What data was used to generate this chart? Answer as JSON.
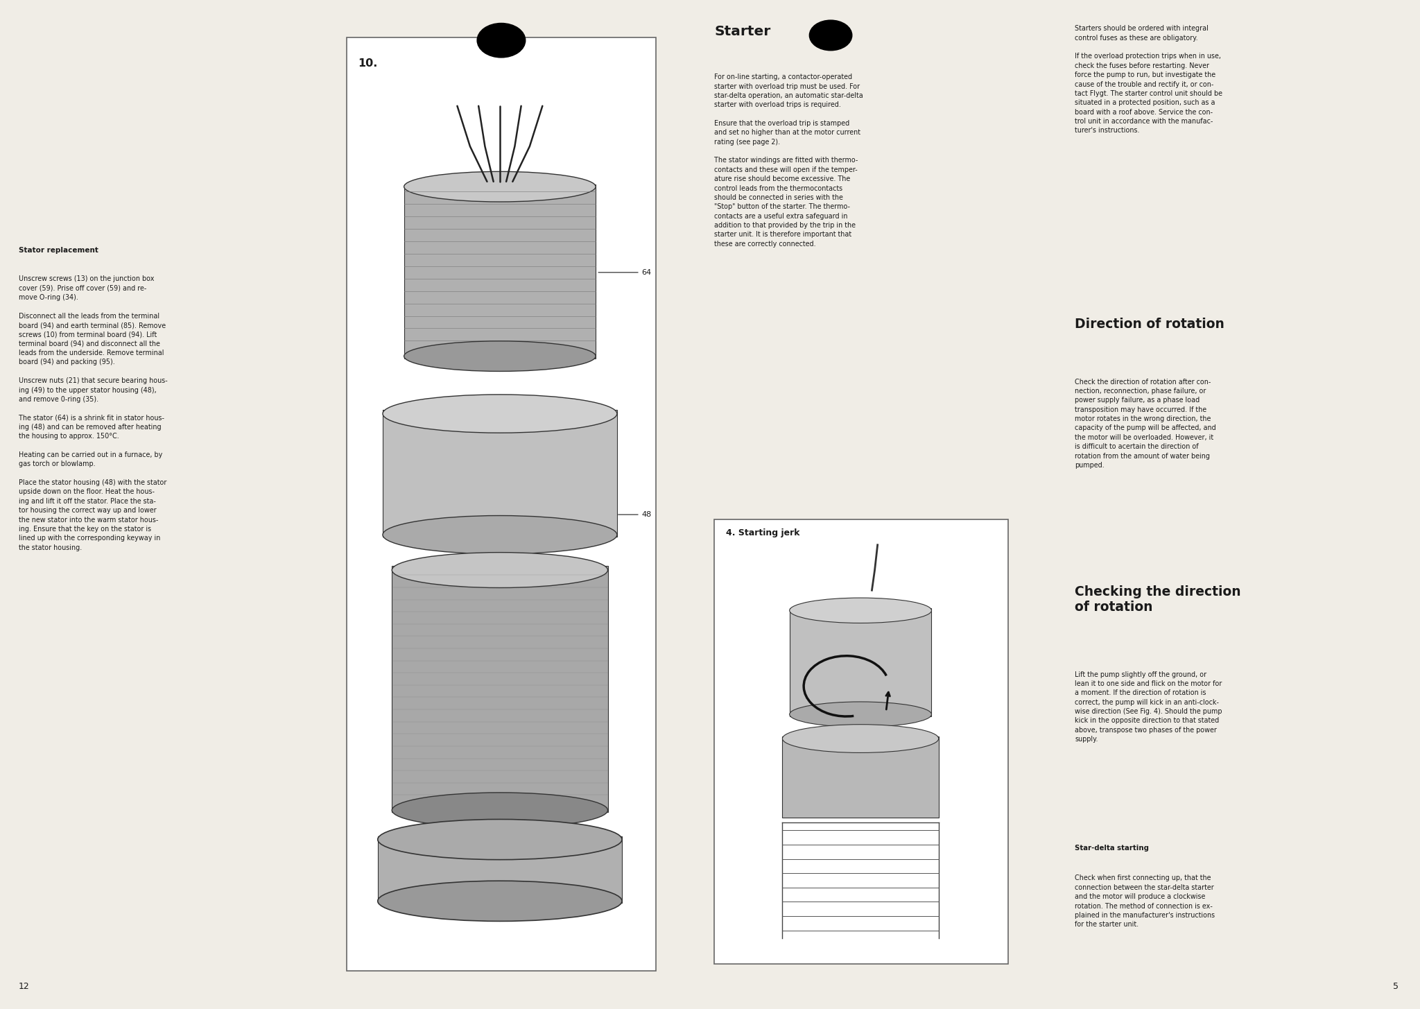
{
  "bg_color": "#f0ede6",
  "page_width": 20.48,
  "page_height": 14.55,
  "text_color": "#1a1a1a",
  "left_heading": "Stator replacement",
  "left_text": "Unscrew screws (13) on the junction box\ncover (59). Prise off cover (59) and re-\nmove O-ring (34).\n\nDisconnect all the leads from the terminal\nboard (94) and earth terminal (85). Remove\nscrews (10) from terminal board (94). Lift\nterminal board (94) and disconnect all the\nleads from the underside. Remove terminal\nboard (94) and packing (95).\n\nUnscrew nuts (21) that secure bearing hous-\ning (49) to the upper stator housing (48),\nand remove 0-ring (35).\n\nThe stator (64) is a shrink fit in stator hous-\ning (48) and can be removed after heating\nthe housing to approx. 150°C.\n\nHeating can be carried out in a furnace, by\ngas torch or blowlamp.\n\nPlace the stator housing (48) with the stator\nupside down on the floor. Heat the hous-\ning and lift it off the stator. Place the sta-\ntor housing the correct way up and lower\nthe new stator into the warm stator hous-\ning. Ensure that the key on the stator is\nlined up with the corresponding keyway in\nthe stator housing.",
  "fig_label": "10.",
  "fig_label_64": "64",
  "fig_label_48": "48",
  "middle_heading": "Starter",
  "middle_text1": "For on-line starting, a contactor-operated\nstarter with overload trip must be used. For\nstar-delta operation, an automatic star-delta\nstarter with overload trips is required.\n\nEnsure that the overload trip is stamped\nand set no higher than at the motor current\nrating (see page 2).\n\nThe stator windings are fitted with thermo-\ncontacts and these will open if the temper-\nature rise should become excessive. The\ncontrol leads from the thermocontacts\nshould be connected in series with the\n\"Stop\" button of the starter. The thermo-\ncontacts are a useful extra safeguard in\naddition to that provided by the trip in the\nstarter unit. It is therefore important that\nthese are correctly connected.",
  "fig4_label": "4. Starting jerk",
  "right_text1": "Starters should be ordered with integral\ncontrol fuses as these are obligatory.\n\nIf the overload protection trips when in use,\ncheck the fuses before restarting. Never\nforce the pump to run, but investigate the\ncause of the trouble and rectify it, or con-\ntact Flygt. The starter control unit should be\nsituated in a protected position, such as a\nboard with a roof above. Service the con-\ntrol unit in accordance with the manufac-\nturer's instructions.",
  "right_heading1": "Direction of rotation",
  "right_text2": "Check the direction of rotation after con-\nnection, reconnection, phase failure, or\npower supply failure, as a phase load\ntransposition may have occurred. If the\nmotor rotates in the wrong direction, the\ncapacity of the pump will be affected, and\nthe motor will be overloaded. However, it\nis difficult to acertain the direction of\nrotation from the amount of water being\npumped.",
  "right_heading2": "Checking the direction\nof rotation",
  "right_text3": "Lift the pump slightly off the ground, or\nlean it to one side and flick on the motor for\na moment. If the direction of rotation is\ncorrect, the pump will kick in an anti-clock-\nwise direction (See Fig. 4). Should the pump\nkick in the opposite direction to that stated\nabove, transpose two phases of the power\nsupply.",
  "right_subheading": "Star-delta starting",
  "right_text4": "Check when first connecting up, that the\nconnection between the star-delta starter\nand the motor will produce a clockwise\nrotation. The method of connection is ex-\nplained in the manufacturer's instructions\nfor the starter unit.",
  "page_num_left": "12",
  "page_num_right": "5"
}
